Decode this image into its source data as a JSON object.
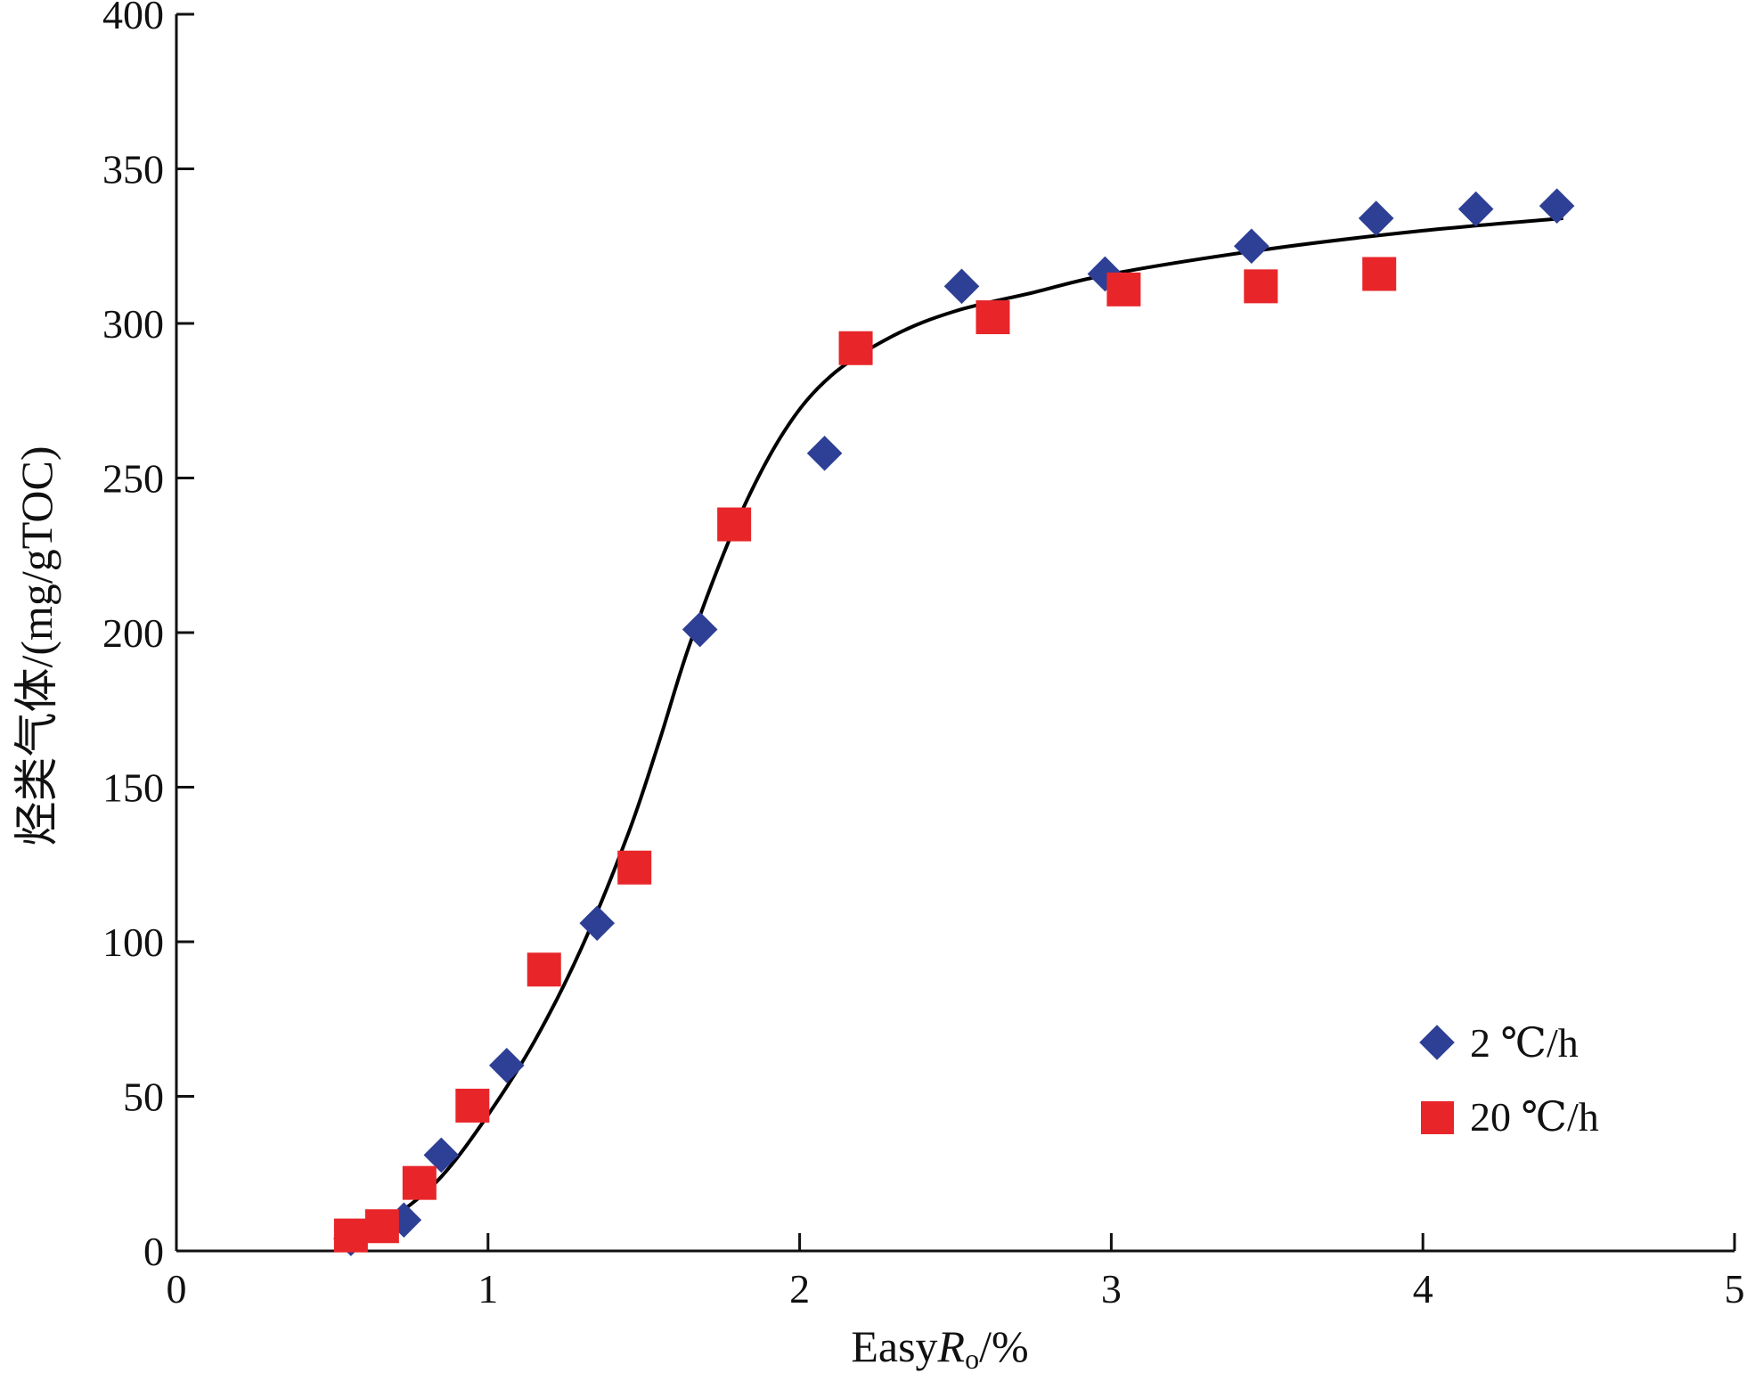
{
  "chart_data": {
    "type": "scatter",
    "xlabel_parts": [
      "Easy",
      "R",
      "o",
      "/%"
    ],
    "ylabel": "烃类气体/(mg/gTOC)",
    "xlim": [
      0,
      5
    ],
    "ylim": [
      0,
      400
    ],
    "x_ticks": [
      0,
      1,
      2,
      3,
      4,
      5
    ],
    "y_ticks": [
      0,
      50,
      100,
      150,
      200,
      250,
      300,
      350,
      400
    ],
    "grid": false,
    "legend_position": "bottom-right",
    "series": [
      {
        "name": "2 ℃/h",
        "marker": "diamond",
        "color": "#2e3f96",
        "points": [
          [
            0.56,
            4
          ],
          [
            0.73,
            10
          ],
          [
            0.85,
            31
          ],
          [
            1.06,
            60
          ],
          [
            1.35,
            106
          ],
          [
            1.68,
            201
          ],
          [
            2.08,
            258
          ],
          [
            2.52,
            312
          ],
          [
            2.98,
            316
          ],
          [
            3.45,
            325
          ],
          [
            3.85,
            334
          ],
          [
            4.17,
            337
          ],
          [
            4.43,
            338
          ]
        ]
      },
      {
        "name": "20 ℃/h",
        "marker": "square",
        "color": "#e8262a",
        "points": [
          [
            0.56,
            5
          ],
          [
            0.66,
            8
          ],
          [
            0.78,
            22
          ],
          [
            0.95,
            47
          ],
          [
            1.18,
            91
          ],
          [
            1.47,
            124
          ],
          [
            1.79,
            235
          ],
          [
            2.18,
            292
          ],
          [
            2.62,
            302
          ],
          [
            3.04,
            311
          ],
          [
            3.48,
            312
          ],
          [
            3.86,
            316
          ]
        ]
      }
    ],
    "fit_curve": {
      "color": "#000000",
      "points": [
        [
          0.57,
          2
        ],
        [
          0.7,
          11
        ],
        [
          0.85,
          24
        ],
        [
          1.0,
          44
        ],
        [
          1.15,
          68
        ],
        [
          1.3,
          98
        ],
        [
          1.45,
          135
        ],
        [
          1.55,
          165
        ],
        [
          1.65,
          197
        ],
        [
          1.8,
          236
        ],
        [
          1.95,
          265
        ],
        [
          2.1,
          283
        ],
        [
          2.3,
          296
        ],
        [
          2.5,
          304
        ],
        [
          2.75,
          310
        ],
        [
          3.0,
          316
        ],
        [
          3.5,
          324
        ],
        [
          4.0,
          330
        ],
        [
          4.45,
          334
        ]
      ]
    }
  }
}
